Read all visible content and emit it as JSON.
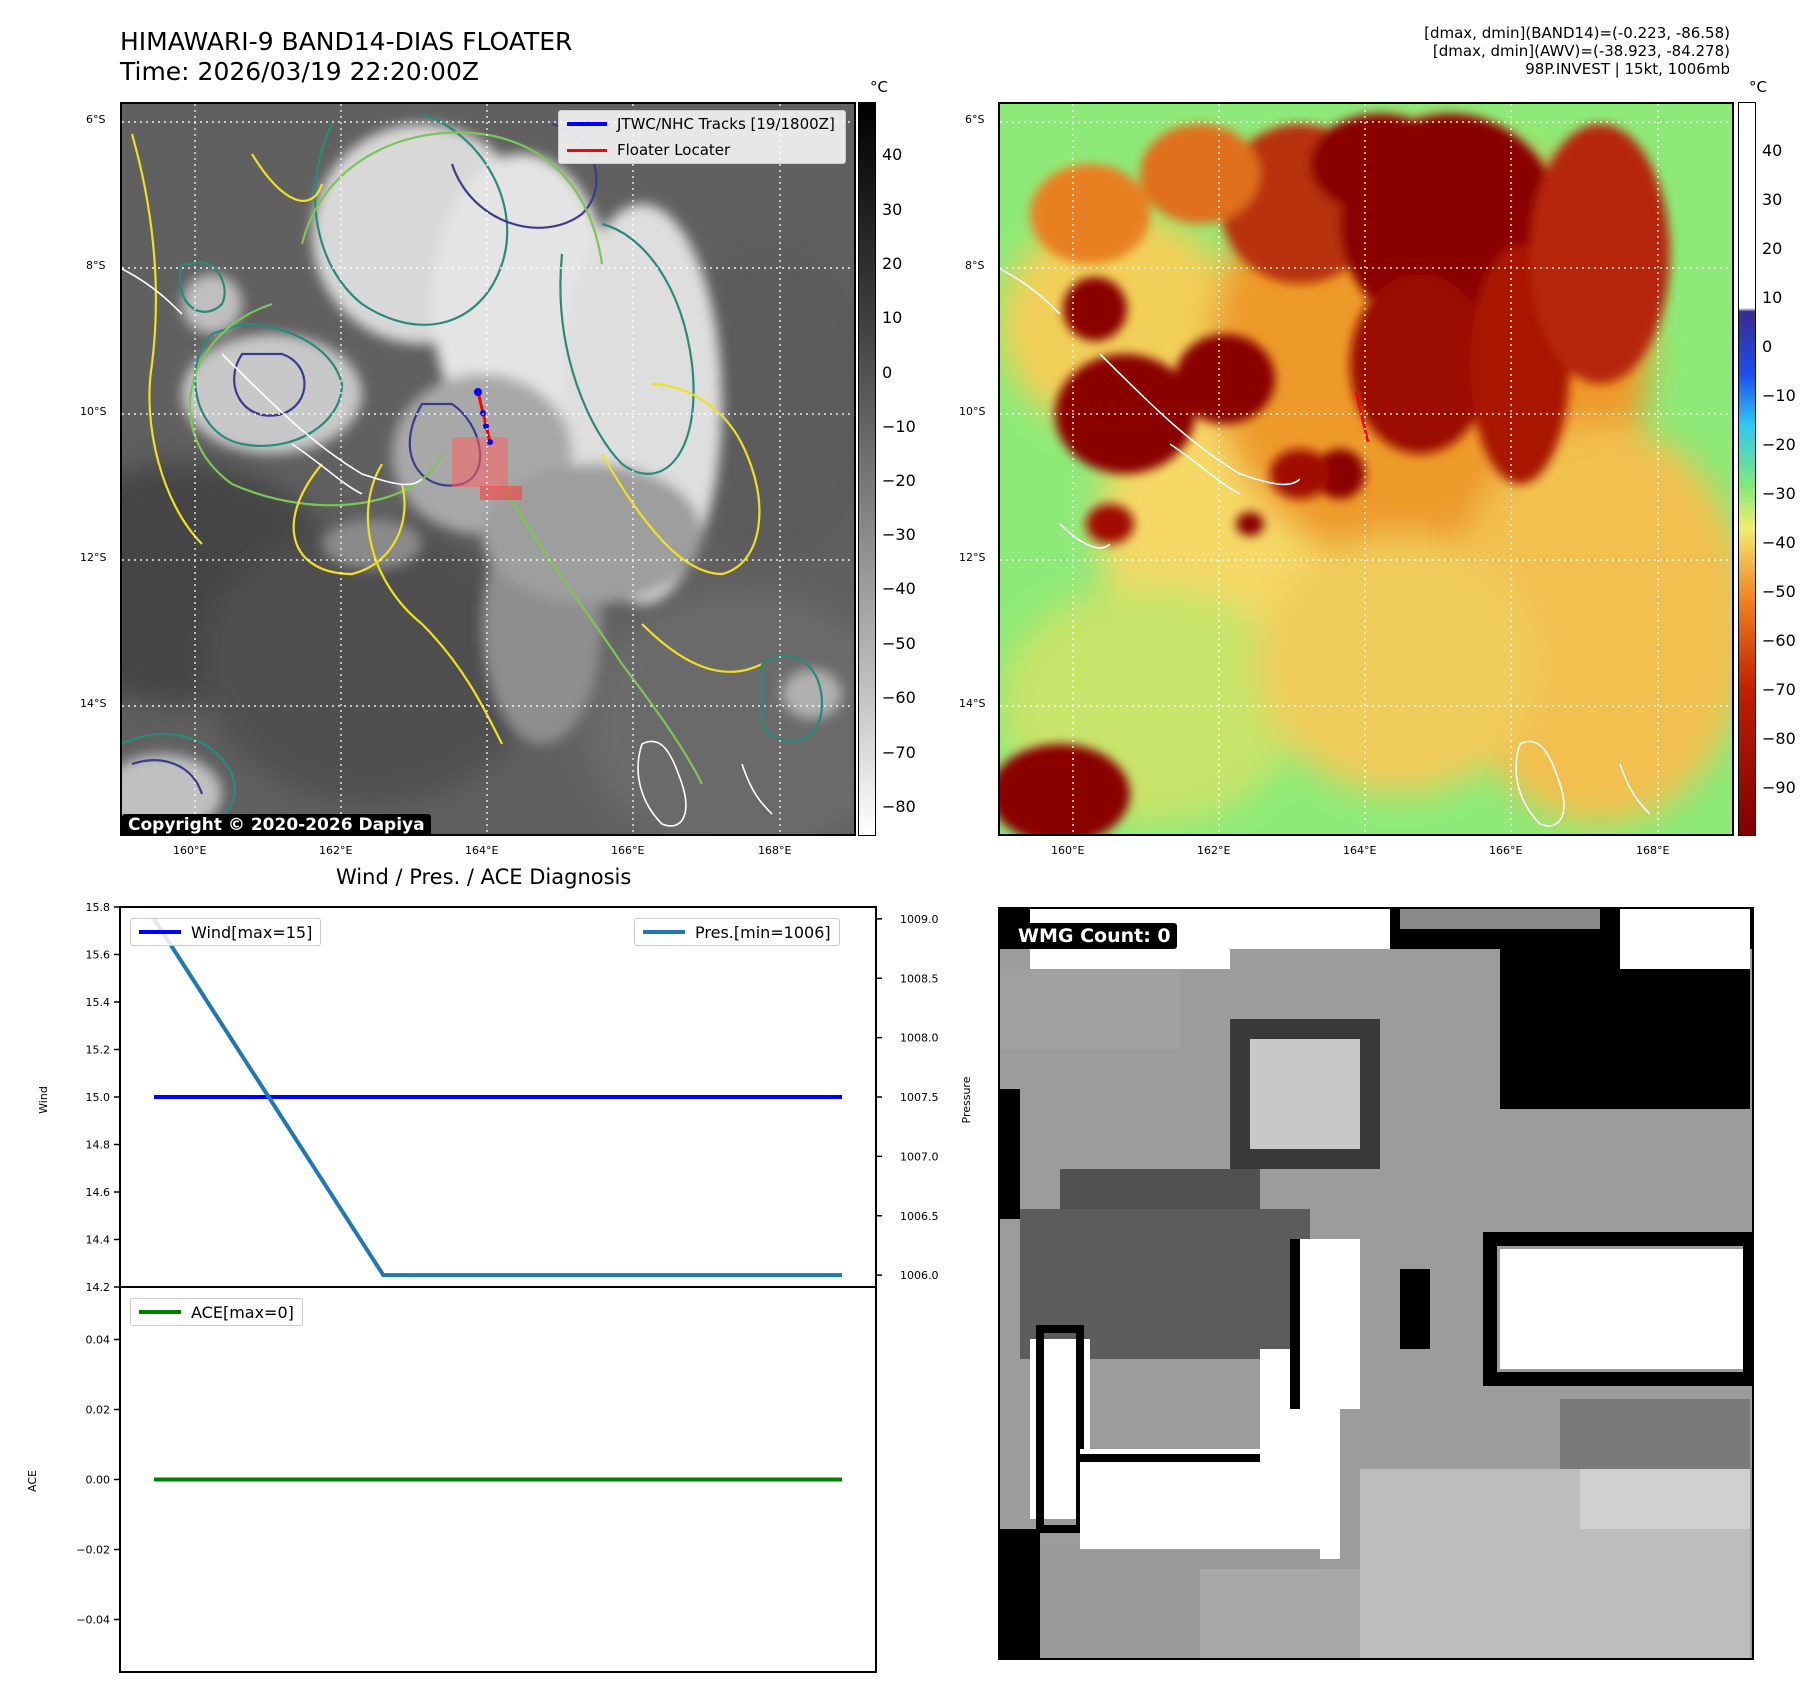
{
  "header": {
    "title_line1": "HIMAWARI-9 BAND14-DIAS FLOATER",
    "title_line2": "Time: 2026/03/19 22:20:00Z",
    "info_line1": "[dmax, dmin](BAND14)=(-0.223, -86.58)",
    "info_line2": "[dmax, dmin](AWV)=(-38.923, -84.278)",
    "info_line3": "98P.INVEST | 15kt, 1006mb"
  },
  "map_axes": {
    "lat_labels": [
      "6°S",
      "8°S",
      "10°S",
      "12°S",
      "14°S"
    ],
    "lon_labels": [
      "160°E",
      "162°E",
      "164°E",
      "166°E",
      "168°E"
    ]
  },
  "ir_panel": {
    "legend": {
      "tracks_label": "JTWC/NHC Tracks [19/1800Z]",
      "locater_label": "Floater Locater",
      "tracks_color": "#0000ff",
      "locater_color": "#ff0000"
    },
    "copyright": "Copyright © 2020-2026 Dapiya",
    "colorbar_unit": "°C",
    "colorbar_ticks": [
      "40",
      "30",
      "20",
      "10",
      "0",
      "−10",
      "−20",
      "−30",
      "−40",
      "−50",
      "−60",
      "−70",
      "−80"
    ]
  },
  "awv_panel": {
    "colorbar_unit": "°C",
    "colorbar_ticks": [
      "40",
      "30",
      "20",
      "10",
      "0",
      "−10",
      "−20",
      "−30",
      "−40",
      "−50",
      "−60",
      "−70",
      "−80",
      "−90"
    ]
  },
  "wmg_panel": {
    "label": "WMG Count: 0"
  },
  "chart_data": [
    {
      "type": "line",
      "title": "Wind / Pres. / ACE Diagnosis",
      "ylabel": "Wind",
      "ylabel_right": "Pressure",
      "ylim": [
        14.2,
        15.8
      ],
      "ylim_right": [
        1005.9,
        1009.1
      ],
      "yticks": [
        "15.8",
        "15.6",
        "15.4",
        "15.2",
        "15.0",
        "14.8",
        "14.6",
        "14.4",
        "14.2"
      ],
      "yticks_right": [
        "1009.0",
        "1008.5",
        "1008.0",
        "1007.5",
        "1007.0",
        "1006.5",
        "1006.0"
      ],
      "series": [
        {
          "name": "Wind[max=15]",
          "axis": "left",
          "color": "#0000ff",
          "x": [
            0,
            1,
            2,
            3
          ],
          "values": [
            15,
            15,
            15,
            15
          ]
        },
        {
          "name": "Pres.[min=1006]",
          "axis": "right",
          "color": "#1f77b4",
          "x": [
            0,
            1,
            2,
            3
          ],
          "values": [
            1009,
            1006,
            1006,
            1006
          ]
        }
      ],
      "legend": [
        "top-left",
        "top-right"
      ]
    },
    {
      "type": "line",
      "ylabel": "ACE",
      "ylim": [
        -0.055,
        0.055
      ],
      "yticks": [
        "0.04",
        "0.02",
        "0.00",
        "−0.02",
        "−0.04"
      ],
      "series": [
        {
          "name": "ACE[max=0]",
          "color": "#008000",
          "x": [
            0,
            1,
            2,
            3
          ],
          "values": [
            0,
            0,
            0,
            0
          ]
        }
      ],
      "legend": "top-left"
    }
  ]
}
